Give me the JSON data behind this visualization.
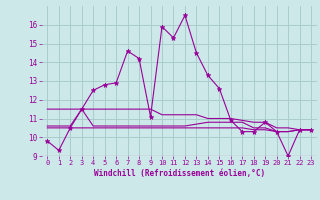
{
  "xlabel": "Windchill (Refroidissement éolien,°C)",
  "bg_color": "#cce8e8",
  "grid_color": "#aacccc",
  "line_color": "#990099",
  "text_color": "#990099",
  "xlim": [
    -0.5,
    23.5
  ],
  "ylim": [
    9.0,
    17.0
  ],
  "xticks": [
    0,
    1,
    2,
    3,
    4,
    5,
    6,
    7,
    8,
    9,
    10,
    11,
    12,
    13,
    14,
    15,
    16,
    17,
    18,
    19,
    20,
    21,
    22,
    23
  ],
  "yticks": [
    9,
    10,
    11,
    12,
    13,
    14,
    15,
    16
  ],
  "series": {
    "main": [
      9.8,
      9.3,
      10.5,
      11.5,
      12.5,
      12.8,
      12.9,
      14.6,
      14.2,
      11.1,
      15.9,
      15.3,
      16.5,
      14.5,
      13.3,
      12.6,
      10.9,
      10.3,
      10.3,
      10.8,
      10.3,
      9.0,
      10.4,
      10.4
    ],
    "flat1": [
      10.6,
      10.6,
      10.6,
      11.5,
      10.6,
      10.6,
      10.6,
      10.6,
      10.6,
      10.6,
      10.6,
      10.6,
      10.6,
      10.7,
      10.8,
      10.8,
      10.8,
      10.8,
      10.5,
      10.5,
      10.3,
      10.3,
      10.4,
      10.4
    ],
    "flat2": [
      10.5,
      10.5,
      10.5,
      10.5,
      10.5,
      10.5,
      10.5,
      10.5,
      10.5,
      10.5,
      10.5,
      10.5,
      10.5,
      10.5,
      10.5,
      10.5,
      10.5,
      10.5,
      10.4,
      10.4,
      10.3,
      10.3,
      10.4,
      10.4
    ],
    "flat3": [
      11.5,
      11.5,
      11.5,
      11.5,
      11.5,
      11.5,
      11.5,
      11.5,
      11.5,
      11.5,
      11.2,
      11.2,
      11.2,
      11.2,
      11.0,
      11.0,
      11.0,
      10.9,
      10.8,
      10.8,
      10.5,
      10.5,
      10.4,
      10.4
    ]
  },
  "font_family": "monospace"
}
